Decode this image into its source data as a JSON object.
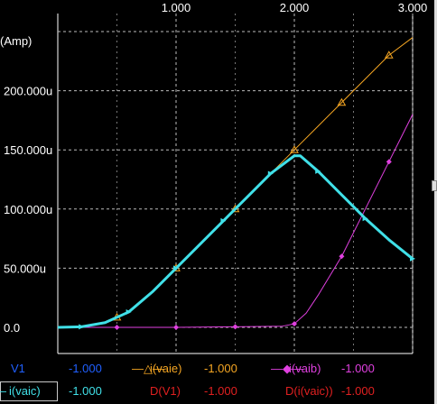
{
  "chart_data": {
    "type": "line",
    "xlim": [
      0,
      3
    ],
    "ylim": [
      -0.0,
      0.00025
    ],
    "x_ticks": [
      "1.000",
      "2.000",
      "3.000"
    ],
    "y_ticks": [
      "0.0",
      "50.000u",
      "100.000u",
      "150.000u",
      "200.000u"
    ],
    "y_unit_label": "(Amp)",
    "grid": true,
    "series": [
      {
        "name": "i(vaie)",
        "color": "#f5a623",
        "marker": "triangle-open",
        "x": [
          0,
          0.2,
          0.4,
          0.6,
          0.8,
          1.0,
          1.2,
          1.4,
          1.6,
          1.8,
          2.0,
          2.2,
          2.4,
          2.6,
          2.8,
          3.0
        ],
        "y": [
          0,
          5e-07,
          4e-06,
          1.3e-05,
          3e-05,
          5e-05,
          7e-05,
          9e-05,
          0.00011,
          0.00013,
          0.00015,
          0.00017,
          0.00019,
          0.00021,
          0.00023,
          0.000245
        ]
      },
      {
        "name": "i(vaib)",
        "color": "#e040e0",
        "marker": "diamond",
        "x": [
          0,
          0.5,
          1.0,
          1.5,
          1.9,
          2.0,
          2.1,
          2.2,
          2.4,
          2.6,
          2.8,
          3.0
        ],
        "y": [
          0,
          0,
          0,
          5e-07,
          1e-06,
          3e-06,
          1.2e-05,
          2.7e-05,
          6e-05,
          0.0001,
          0.00014,
          0.00018
        ]
      },
      {
        "name": "i(vaic)",
        "color": "#40e0e8",
        "marker": "triangle-filled",
        "x": [
          0,
          0.2,
          0.4,
          0.6,
          0.8,
          1.0,
          1.2,
          1.4,
          1.6,
          1.8,
          2.0,
          2.05,
          2.2,
          2.4,
          2.6,
          2.8,
          3.0
        ],
        "y": [
          0,
          5e-07,
          4e-06,
          1.3e-05,
          3e-05,
          5e-05,
          7e-05,
          9e-05,
          0.00011,
          0.00013,
          0.000145,
          0.000145,
          0.000132,
          0.000112,
          9.2e-05,
          7.4e-05,
          5.8e-05
        ]
      }
    ]
  },
  "legend": {
    "row1": [
      {
        "label": "V1",
        "value": "-1.000",
        "color": "#2060ff"
      },
      {
        "label": "i(vaie)",
        "value": "-1.000",
        "color": "#f5a623"
      },
      {
        "label": "i(vaib)",
        "value": "-1.000",
        "color": "#e040e0"
      }
    ],
    "row2": [
      {
        "label": "i(vaic)",
        "value": "-1.000",
        "color": "#40e0e8"
      },
      {
        "label": "D(V1)",
        "value": "-1.000",
        "color": "#e02020"
      },
      {
        "label": "D(i(vaic))",
        "value": "-1.000",
        "color": "#e02020"
      }
    ]
  }
}
